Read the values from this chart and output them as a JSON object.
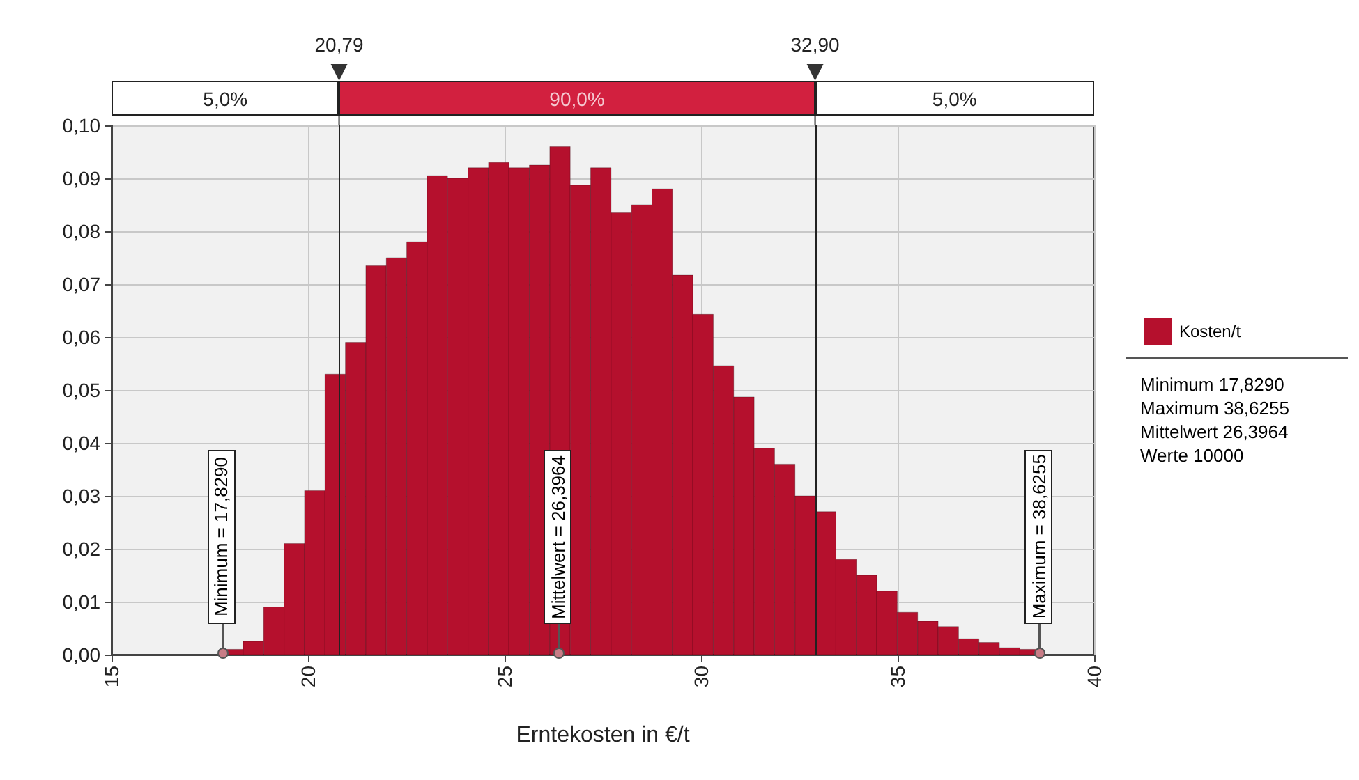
{
  "chart_data": {
    "type": "histogram",
    "xlabel": "Erntekosten in €/t",
    "bins": [
      17.83,
      18.35,
      18.87,
      19.39,
      19.91,
      20.43,
      20.95,
      21.47,
      21.99,
      22.51,
      23.03,
      23.55,
      24.07,
      24.59,
      25.11,
      25.63,
      26.15,
      26.67,
      27.19,
      27.71,
      28.23,
      28.75,
      29.27,
      29.79,
      30.31,
      30.83,
      31.35,
      31.87,
      32.39,
      32.91,
      33.43,
      33.95,
      34.47,
      34.99,
      35.51,
      36.03,
      36.55,
      37.07,
      37.59,
      38.11,
      38.63
    ],
    "series": [
      {
        "name": "Kosten/t",
        "color": "#b5102d",
        "values": [
          0.001,
          0.0025,
          0.009,
          0.021,
          0.031,
          0.053,
          0.059,
          0.0735,
          0.075,
          0.078,
          0.0905,
          0.09,
          0.092,
          0.093,
          0.092,
          0.0925,
          0.096,
          0.0887,
          0.092,
          0.0835,
          0.085,
          0.088,
          0.0717,
          0.0643,
          0.0546,
          0.0487,
          0.039,
          0.036,
          0.03,
          0.027,
          0.018,
          0.015,
          0.012,
          0.008,
          0.0063,
          0.0053,
          0.003,
          0.0023,
          0.0013,
          0.001
        ]
      }
    ],
    "xlim": [
      15,
      40
    ],
    "xticks": [
      15,
      20,
      25,
      30,
      35,
      40
    ],
    "ylim": [
      0,
      0.1
    ],
    "yticks": [
      {
        "value": 0,
        "label": "0,00"
      },
      {
        "value": 0.01,
        "label": "0,01"
      },
      {
        "value": 0.02,
        "label": "0,02"
      },
      {
        "value": 0.03,
        "label": "0,03"
      },
      {
        "value": 0.04,
        "label": "0,04"
      },
      {
        "value": 0.05,
        "label": "0,05"
      },
      {
        "value": 0.06,
        "label": "0,06"
      },
      {
        "value": 0.07,
        "label": "0,07"
      },
      {
        "value": 0.08,
        "label": "0,08"
      },
      {
        "value": 0.09,
        "label": "0,09"
      },
      {
        "value": 0.1,
        "label": "0,10"
      }
    ],
    "grid": true,
    "legend": "right",
    "ref_lines": [
      {
        "axis": "x",
        "value": 20.79,
        "label": "20,79"
      },
      {
        "axis": "x",
        "value": 32.9,
        "label": "32,90"
      }
    ],
    "annotations": [
      "5,0%",
      "90,0%",
      "5,0%",
      {
        "text": "Minimum = 17,8290",
        "x": 17.829,
        "y": 0
      },
      {
        "text": "Mittelwert = 26,3964",
        "x": 26.3964,
        "y": 0
      },
      {
        "text": "Maximum = 38,6255",
        "x": 38.6255,
        "y": 0
      },
      "Minimum 17,8290",
      "Maximum 38,6255",
      "Mittelwert 26,3964",
      "Werte 10000"
    ]
  }
}
